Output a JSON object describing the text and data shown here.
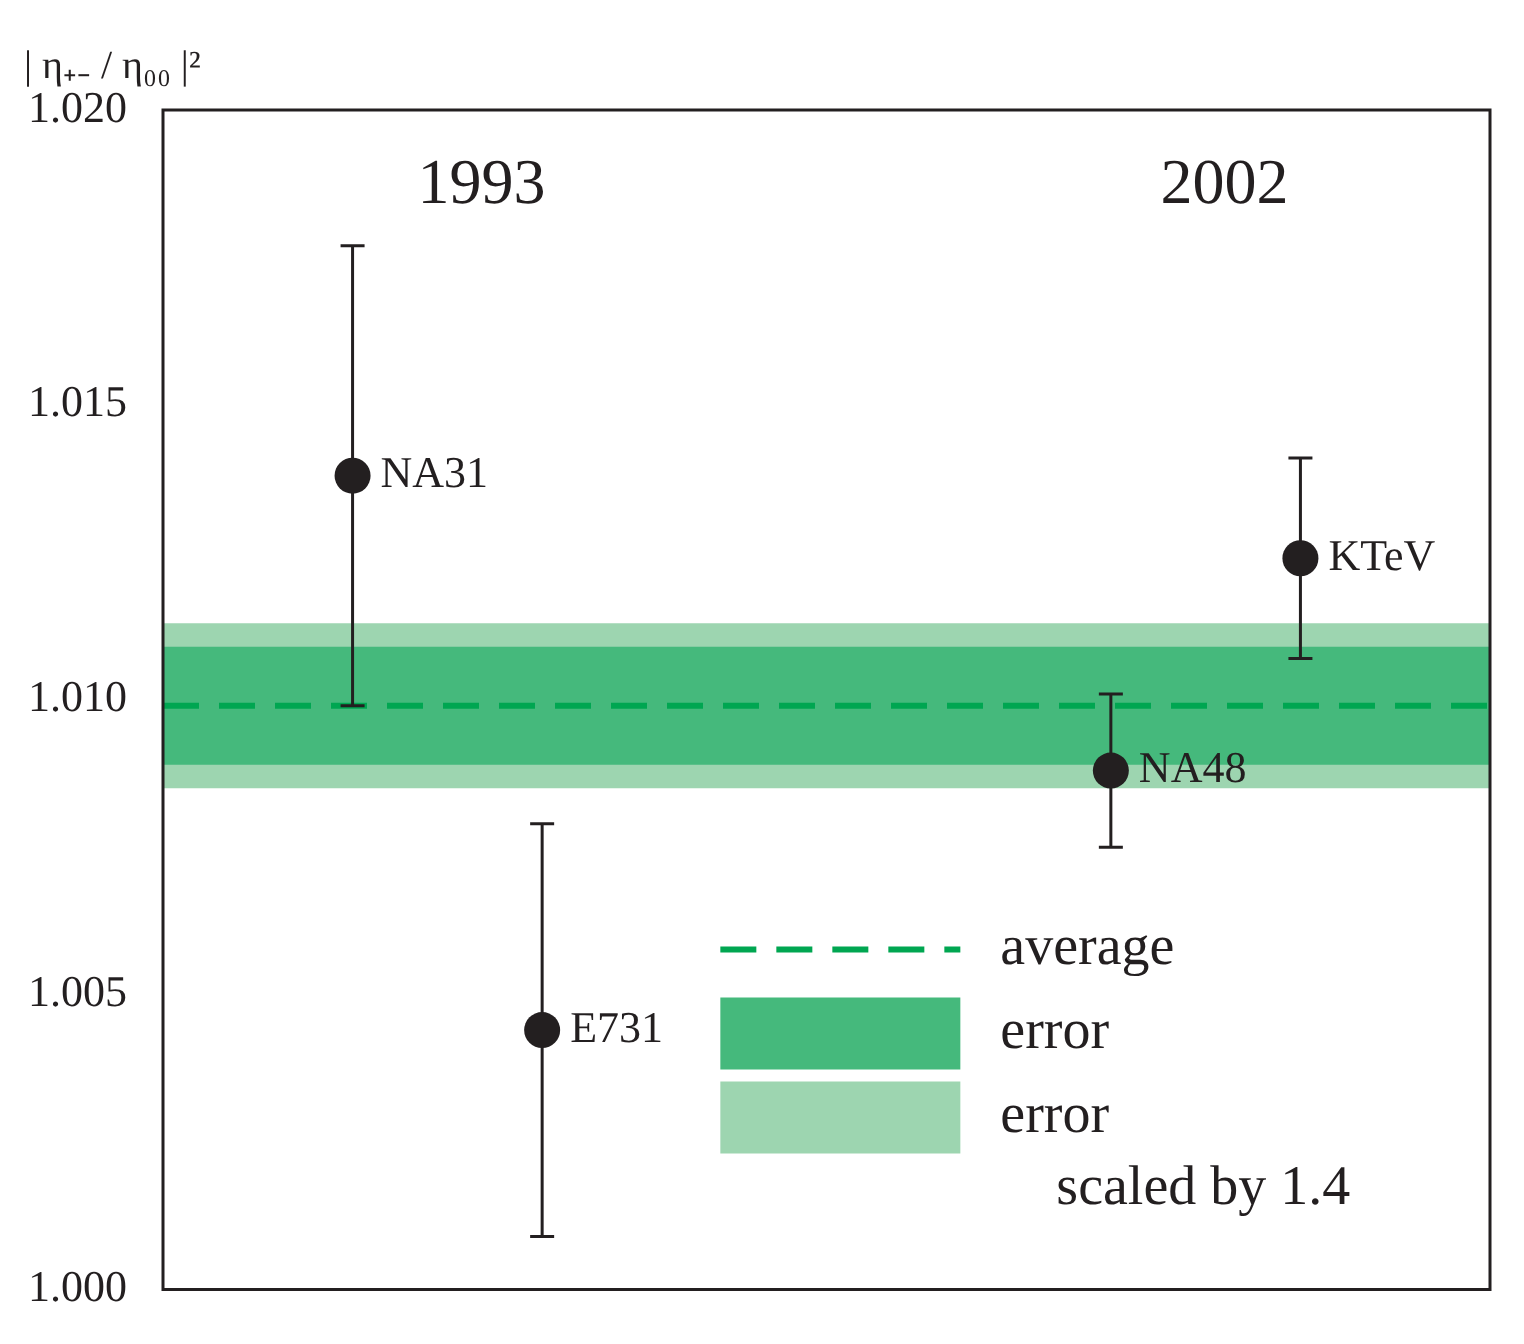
{
  "chart_data": {
    "type": "scatter",
    "ylabel": "| η₊₋ / η₀₀ |²",
    "categories": [
      null,
      null,
      null,
      null,
      null,
      null,
      null,
      null
    ],
    "series": [
      {
        "name": "NA31",
        "color": "#231f20",
        "values": [
          null,
          1.0138,
          null,
          null,
          null,
          null,
          null,
          null
        ],
        "errors": [
          null,
          0.0039,
          null,
          null,
          null,
          null,
          null,
          null
        ]
      },
      {
        "name": "E731",
        "color": "#231f20",
        "values": [
          null,
          null,
          1.0044,
          null,
          null,
          null,
          null,
          null
        ],
        "errors": [
          null,
          null,
          0.0035,
          null,
          null,
          null,
          null,
          null
        ]
      },
      {
        "name": "NA48",
        "color": "#231f20",
        "values": [
          null,
          null,
          null,
          null,
          null,
          1.0088,
          null,
          null
        ],
        "errors": [
          null,
          null,
          null,
          null,
          null,
          0.0013,
          null,
          null
        ]
      },
      {
        "name": "KTeV",
        "color": "#231f20",
        "values": [
          null,
          null,
          null,
          null,
          null,
          null,
          1.0124,
          null
        ],
        "errors": [
          null,
          null,
          null,
          null,
          null,
          null,
          0.0017,
          null
        ]
      }
    ],
    "ylim": [
      1.0,
      1.02
    ],
    "yticks": [
      {
        "value": 1.0,
        "label": "1.000"
      },
      {
        "value": 1.005,
        "label": "1.005"
      },
      {
        "value": 1.01,
        "label": "1.010"
      },
      {
        "value": 1.015,
        "label": "1.015"
      },
      {
        "value": 1.02,
        "label": "1.020"
      }
    ],
    "ref_lines": [
      {
        "axis": "y",
        "value": 1.0099,
        "label": "average",
        "color": "#00a651",
        "line_style": "dashed"
      }
    ],
    "bands": [
      {
        "axis": "y",
        "from": 1.0085,
        "to": 1.0113,
        "label": "error scaled by 1.4",
        "color": "#9dd5b0"
      },
      {
        "axis": "y",
        "from": 1.0089,
        "to": 1.0109,
        "label": "error",
        "color": "#45b97c"
      }
    ],
    "annotations": [
      "1993",
      "2002"
    ],
    "marker": "circle",
    "grid": false,
    "legend": "bottom right",
    "tick_labels": "y"
  }
}
